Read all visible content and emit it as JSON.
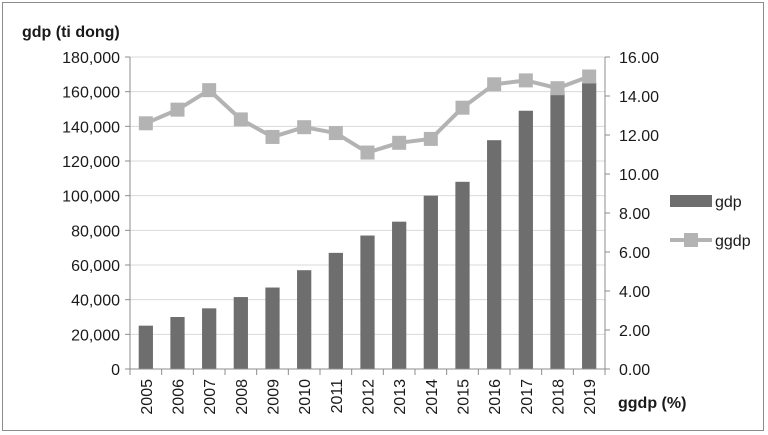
{
  "chart_data": {
    "type": "bar",
    "categories": [
      "2005",
      "2006",
      "2007",
      "2008",
      "2009",
      "2010",
      "2011",
      "2012",
      "2013",
      "2014",
      "2015",
      "2016",
      "2017",
      "2018",
      "2019"
    ],
    "series": [
      {
        "name": "gdp",
        "type": "bar",
        "axis": "left",
        "values": [
          25000,
          30000,
          35000,
          41500,
          47000,
          57000,
          67000,
          77000,
          85000,
          100000,
          108000,
          132000,
          149000,
          160000,
          165000
        ]
      },
      {
        "name": "ggdp",
        "type": "line",
        "axis": "right",
        "values": [
          12.6,
          13.3,
          14.3,
          12.8,
          11.9,
          12.4,
          12.1,
          11.1,
          11.6,
          11.8,
          13.4,
          14.6,
          14.8,
          14.4,
          15.0
        ]
      }
    ],
    "ylabel": "gdp (ti dong)",
    "y2label": "ggdp (%)",
    "ylim": [
      0,
      180000
    ],
    "y2lim": [
      0,
      16
    ],
    "yticks": [
      "0",
      "20,000",
      "40,000",
      "60,000",
      "80,000",
      "100,000",
      "120,000",
      "140,000",
      "160,000",
      "180,000"
    ],
    "y2ticks": [
      "0.00",
      "2.00",
      "4.00",
      "6.00",
      "8.00",
      "10.00",
      "12.00",
      "14.00",
      "16.00"
    ],
    "grid": true,
    "legend": "right",
    "colors": {
      "bar": "#6e6e6e",
      "line": "#b3b3b3",
      "grid": "#d9d9d9",
      "axis": "#8c8c8c"
    }
  }
}
